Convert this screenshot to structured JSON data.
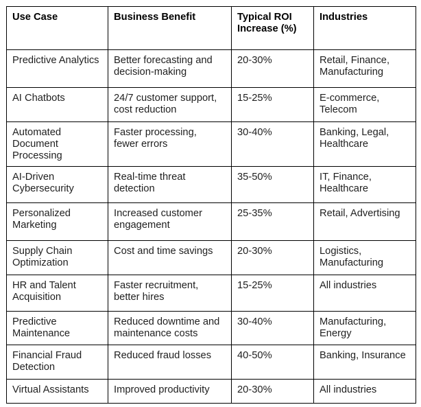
{
  "colors": {
    "background": "#ffffff",
    "table_border": "#000000",
    "header_text": "#000000",
    "body_text": "#1f1f1f"
  },
  "table": {
    "columns": [
      "Use Case",
      "Business Benefit",
      "Typical ROI\nIncrease (%)",
      "Industries"
    ],
    "rows": [
      {
        "use_case": "Predictive Analytics",
        "business_benefit": "Better forecasting and\ndecision-making",
        "roi_increase": "20-30%",
        "industries": "Retail, Finance,\nManufacturing"
      },
      {
        "use_case": "AI Chatbots",
        "business_benefit": "24/7 customer support,\ncost reduction",
        "roi_increase": "15-25%",
        "industries": "E-commerce,\nTelecom"
      },
      {
        "use_case": "Automated\nDocument\nProcessing",
        "business_benefit": "Faster processing,\nfewer errors",
        "roi_increase": "30-40%",
        "industries": "Banking, Legal,\nHealthcare"
      },
      {
        "use_case": "AI-Driven\nCybersecurity",
        "business_benefit": "Real-time threat\ndetection",
        "roi_increase": "35-50%",
        "industries": "IT, Finance,\nHealthcare"
      },
      {
        "use_case": "Personalized\nMarketing",
        "business_benefit": "Increased customer\nengagement",
        "roi_increase": "25-35%",
        "industries": "Retail, Advertising"
      },
      {
        "use_case": "Supply Chain\nOptimization",
        "business_benefit": "Cost and time savings",
        "roi_increase": "20-30%",
        "industries": "Logistics,\nManufacturing"
      },
      {
        "use_case": "HR and Talent\nAcquisition",
        "business_benefit": "Faster recruitment,\nbetter hires",
        "roi_increase": "15-25%",
        "industries": "All industries"
      },
      {
        "use_case": "Predictive\nMaintenance",
        "business_benefit": "Reduced downtime and\nmaintenance costs",
        "roi_increase": "30-40%",
        "industries": "Manufacturing,\nEnergy"
      },
      {
        "use_case": "Financial Fraud\nDetection",
        "business_benefit": "Reduced fraud losses",
        "roi_increase": "40-50%",
        "industries": "Banking, Insurance"
      },
      {
        "use_case": "Virtual Assistants",
        "business_benefit": "Improved productivity",
        "roi_increase": "20-30%",
        "industries": "All industries"
      }
    ]
  }
}
